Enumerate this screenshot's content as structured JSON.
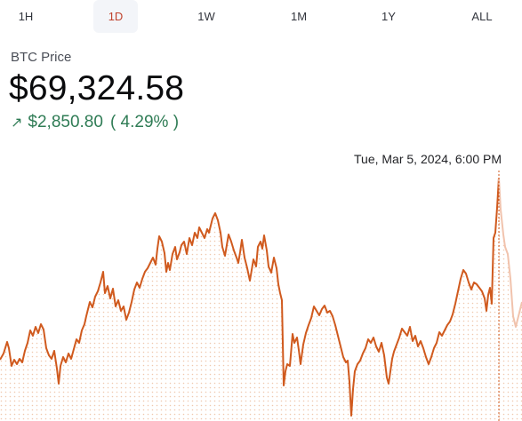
{
  "range_tabs": [
    {
      "label": "1H",
      "active": false
    },
    {
      "label": "1D",
      "active": true
    },
    {
      "label": "1W",
      "active": false
    },
    {
      "label": "1M",
      "active": false
    },
    {
      "label": "1Y",
      "active": false
    },
    {
      "label": "ALL",
      "active": false
    }
  ],
  "asset": {
    "label": "BTC Price",
    "price": "$69,324.58",
    "change_icon": "arrow-up-right-icon",
    "change_amount": "$2,850.80",
    "change_percent": "( 4.29% )"
  },
  "tooltip": {
    "date": "Tue, Mar 5, 2024, 6:00 PM"
  },
  "colors": {
    "line": "#d05a1e",
    "accent": "#c0422c",
    "positive": "#2f7c55",
    "fill_dots": "#efc8ae"
  }
}
